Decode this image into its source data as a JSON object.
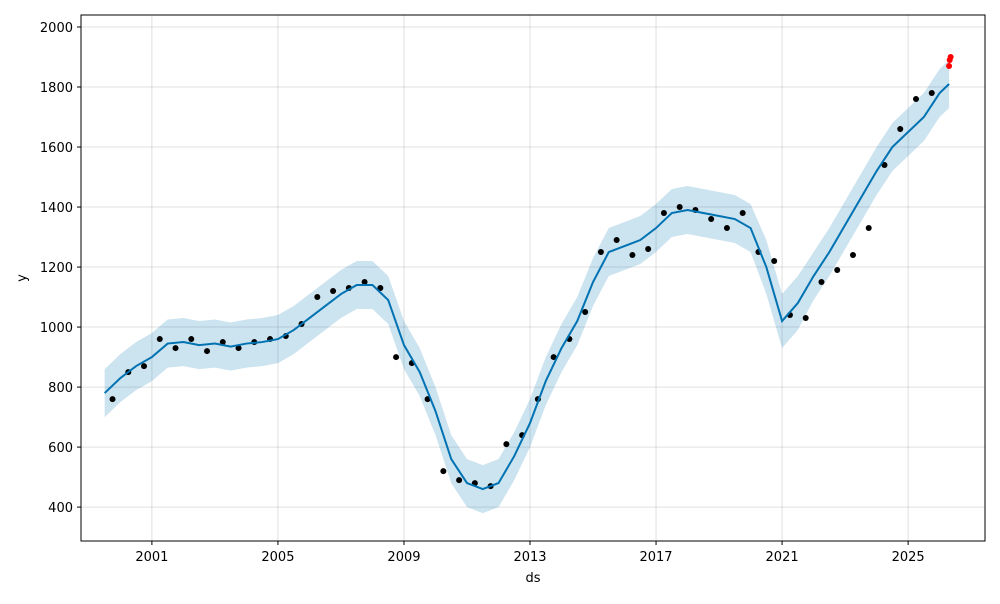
{
  "chart_data": {
    "type": "line",
    "xlabel": "ds",
    "ylabel": "y",
    "xlim": [
      1998.75,
      2027.44
    ],
    "ylim": [
      287,
      2040
    ],
    "xticks": [
      2001,
      2005,
      2009,
      2013,
      2017,
      2021,
      2025
    ],
    "yticks": [
      400,
      600,
      800,
      1000,
      1200,
      1400,
      1600,
      1800,
      2000
    ],
    "grid": true,
    "forecast": {
      "color": "#0072B2",
      "band_color": "#0072B2",
      "x": [
        1999.5,
        2000,
        2000.5,
        2001,
        2001.5,
        2002,
        2002.5,
        2003,
        2003.5,
        2004,
        2004.5,
        2005,
        2005.5,
        2006,
        2006.5,
        2007,
        2007.5,
        2008,
        2008.5,
        2009,
        2009.5,
        2010,
        2010.5,
        2011,
        2011.5,
        2012,
        2012.5,
        2013,
        2013.5,
        2014,
        2014.5,
        2015,
        2015.5,
        2016,
        2016.5,
        2017,
        2017.5,
        2018,
        2018.5,
        2019,
        2019.5,
        2020,
        2020.5,
        2021,
        2021.5,
        2022,
        2022.5,
        2023,
        2023.5,
        2024,
        2024.5,
        2025,
        2025.5,
        2026,
        2026.3
      ],
      "values": [
        780,
        830,
        870,
        900,
        945,
        950,
        940,
        945,
        935,
        945,
        950,
        960,
        990,
        1030,
        1070,
        1110,
        1140,
        1140,
        1090,
        940,
        850,
        720,
        560,
        480,
        460,
        480,
        570,
        680,
        820,
        930,
        1020,
        1150,
        1250,
        1270,
        1290,
        1330,
        1380,
        1390,
        1380,
        1370,
        1360,
        1330,
        1200,
        1020,
        1080,
        1170,
        1250,
        1340,
        1430,
        1520,
        1600,
        1650,
        1700,
        1780,
        1810
      ],
      "lower": [
        700,
        750,
        790,
        820,
        865,
        870,
        860,
        865,
        855,
        865,
        870,
        880,
        910,
        950,
        990,
        1030,
        1060,
        1060,
        1010,
        860,
        770,
        640,
        480,
        400,
        380,
        400,
        490,
        600,
        740,
        850,
        940,
        1070,
        1170,
        1190,
        1210,
        1250,
        1300,
        1310,
        1300,
        1290,
        1280,
        1250,
        1110,
        930,
        990,
        1090,
        1170,
        1260,
        1350,
        1440,
        1520,
        1570,
        1620,
        1700,
        1730
      ],
      "upper": [
        860,
        910,
        950,
        980,
        1025,
        1030,
        1020,
        1025,
        1015,
        1025,
        1030,
        1040,
        1070,
        1110,
        1150,
        1190,
        1220,
        1220,
        1170,
        1020,
        930,
        800,
        640,
        560,
        540,
        560,
        650,
        760,
        900,
        1010,
        1100,
        1230,
        1330,
        1350,
        1370,
        1410,
        1460,
        1470,
        1460,
        1450,
        1440,
        1410,
        1290,
        1110,
        1170,
        1250,
        1330,
        1420,
        1510,
        1600,
        1680,
        1730,
        1780,
        1860,
        1890
      ]
    },
    "observed": {
      "color": "#000000",
      "x": [
        1999.75,
        2000.25,
        2000.75,
        2001.25,
        2001.75,
        2002.25,
        2002.75,
        2003.25,
        2003.75,
        2004.25,
        2004.75,
        2005.25,
        2005.75,
        2006.25,
        2006.75,
        2007.25,
        2007.75,
        2008.25,
        2008.75,
        2009.25,
        2009.75,
        2010.25,
        2010.75,
        2011.25,
        2011.75,
        2012.25,
        2012.75,
        2013.25,
        2013.75,
        2014.25,
        2014.75,
        2015.25,
        2015.75,
        2016.25,
        2016.75,
        2017.25,
        2017.75,
        2018.25,
        2018.75,
        2019.25,
        2019.75,
        2020.25,
        2020.75,
        2021.25,
        2021.75,
        2022.25,
        2022.75,
        2023.25,
        2023.75,
        2024.25,
        2024.75,
        2025.25,
        2025.75
      ],
      "values": [
        760,
        850,
        870,
        960,
        930,
        960,
        920,
        950,
        930,
        950,
        960,
        970,
        1010,
        1100,
        1120,
        1130,
        1150,
        1130,
        900,
        880,
        760,
        520,
        490,
        480,
        470,
        610,
        640,
        760,
        900,
        960,
        1050,
        1250,
        1290,
        1240,
        1260,
        1380,
        1400,
        1390,
        1360,
        1330,
        1380,
        1250,
        1220,
        1040,
        1030,
        1150,
        1190,
        1240,
        1330,
        1540,
        1660,
        1760,
        1780
      ]
    },
    "recent": {
      "color": "#ff0000",
      "x": [
        2026.3,
        2026.32,
        2026.35
      ],
      "values": [
        1870,
        1890,
        1900
      ]
    }
  }
}
